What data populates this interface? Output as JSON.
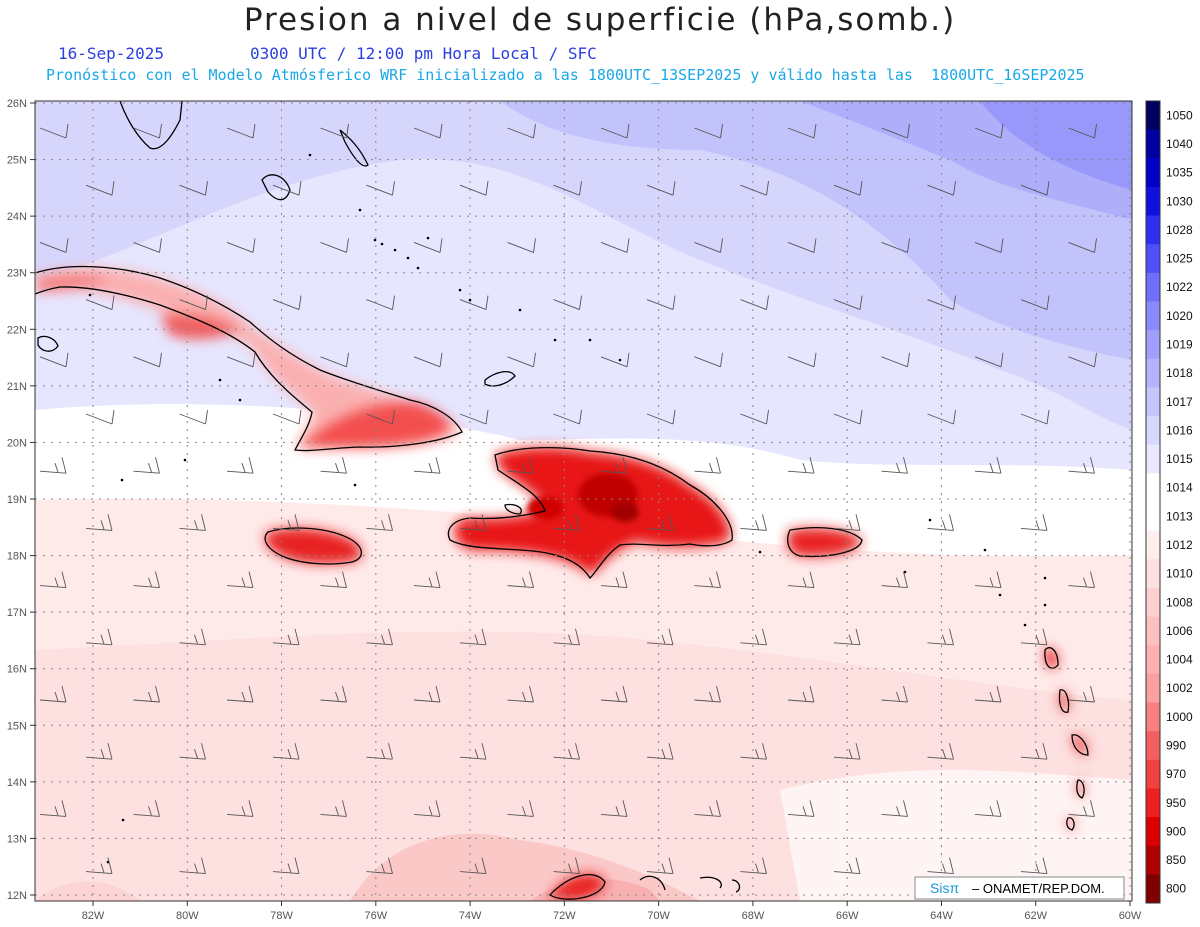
{
  "title": "Presion a nivel de superficie (hPa,somb.)",
  "date": "16-Sep-2025",
  "time_info": "0300 UTC / 12:00 pm Hora Local / SFC",
  "model_info": "Pronóstico con el Modelo Atmósferico WRF inicializado a las 1800UTC_13SEP2025 y válido hasta las  1800UTC_16SEP2025",
  "lat_labels": [
    "26N",
    "25N",
    "24N",
    "23N",
    "22N",
    "21N",
    "20N",
    "19N",
    "18N",
    "17N",
    "16N",
    "15N",
    "14N",
    "13N",
    "12N"
  ],
  "lon_labels": [
    "82W",
    "80W",
    "78W",
    "76W",
    "74W",
    "72W",
    "70W",
    "68W",
    "66W",
    "64W",
    "62W",
    "60W"
  ],
  "colorbar_labels": [
    "1050",
    "1040",
    "1035",
    "1030",
    "1028",
    "1025",
    "1022",
    "1020",
    "1019",
    "1018",
    "1017",
    "1016",
    "1015",
    "1014",
    "1013",
    "1012",
    "1010",
    "1008",
    "1006",
    "1004",
    "1002",
    "1000",
    "990",
    "970",
    "950",
    "900",
    "850",
    "800"
  ],
  "colorbar_colors": [
    "#000060",
    "#0000a0",
    "#0000c8",
    "#1010e0",
    "#3030f0",
    "#5050f8",
    "#6f6ffb",
    "#8a8afd",
    "#a0a0fc",
    "#b4b4fd",
    "#c6c6fd",
    "#d8d8fe",
    "#e8e8ff",
    "#ffffff",
    "#ffffff",
    "#ffeeee",
    "#fee0e0",
    "#fdd0d0",
    "#fcc0c0",
    "#fcb0b0",
    "#fba0a0",
    "#f98080",
    "#f46060",
    "#f04040",
    "#ee2020",
    "#dd0000",
    "#b00000",
    "#800000"
  ],
  "watermark": {
    "brand": "Sisπ",
    "org": "– ONAMET/REP.DOM."
  }
}
